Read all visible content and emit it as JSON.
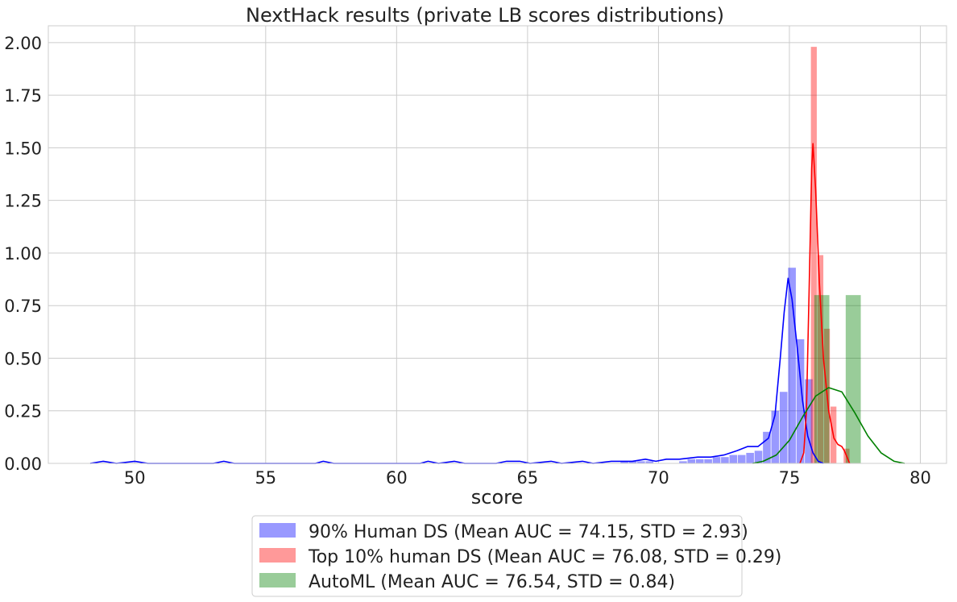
{
  "chart_data": {
    "type": "histogram",
    "title": "NextHack results (private LB scores distributions)",
    "xlabel": "score",
    "ylabel": "",
    "xlim": [
      46.7,
      81.0
    ],
    "ylim": [
      0,
      2.08
    ],
    "xticks": [
      50,
      55,
      60,
      65,
      70,
      75,
      80
    ],
    "yticks": [
      0,
      0.25,
      0.5,
      0.75,
      1.0,
      1.25,
      1.5,
      1.75,
      2.0
    ],
    "ytick_labels": [
      "0.00",
      "0.25",
      "0.50",
      "0.75",
      "1.00",
      "1.25",
      "1.50",
      "1.75",
      "2.00"
    ],
    "grid": true,
    "legend_position": "bottom-center",
    "series": [
      {
        "name": "90% Human DS (Mean AUC = 74.15, STD = 2.93)",
        "color": "#0000ff",
        "bin_width": 0.32,
        "bars": [
          [
            68.55,
            0.01
          ],
          [
            68.87,
            0.01
          ],
          [
            69.19,
            0.01
          ],
          [
            69.51,
            0.01
          ],
          [
            70.79,
            0.01
          ],
          [
            71.11,
            0.02
          ],
          [
            71.43,
            0.02
          ],
          [
            71.75,
            0.02
          ],
          [
            72.07,
            0.03
          ],
          [
            72.39,
            0.03
          ],
          [
            72.71,
            0.04
          ],
          [
            73.03,
            0.04
          ],
          [
            73.35,
            0.05
          ],
          [
            73.67,
            0.06
          ],
          [
            73.99,
            0.15
          ],
          [
            74.31,
            0.25
          ],
          [
            74.63,
            0.34
          ],
          [
            74.95,
            0.93
          ],
          [
            75.27,
            0.59
          ],
          [
            75.59,
            0.4
          ]
        ],
        "kde": [
          [
            48.3,
            0.0
          ],
          [
            48.8,
            0.01
          ],
          [
            49.3,
            0.0
          ],
          [
            50.0,
            0.01
          ],
          [
            50.5,
            0.0
          ],
          [
            53.0,
            0.0
          ],
          [
            53.4,
            0.01
          ],
          [
            53.8,
            0.0
          ],
          [
            56.9,
            0.0
          ],
          [
            57.2,
            0.01
          ],
          [
            57.6,
            0.0
          ],
          [
            60.9,
            0.0
          ],
          [
            61.2,
            0.01
          ],
          [
            61.6,
            0.0
          ],
          [
            62.2,
            0.01
          ],
          [
            62.6,
            0.0
          ],
          [
            63.8,
            0.0
          ],
          [
            64.2,
            0.01
          ],
          [
            64.7,
            0.01
          ],
          [
            65.1,
            0.0
          ],
          [
            65.9,
            0.01
          ],
          [
            66.3,
            0.0
          ],
          [
            67.1,
            0.01
          ],
          [
            67.5,
            0.0
          ],
          [
            68.2,
            0.01
          ],
          [
            68.6,
            0.01
          ],
          [
            69.0,
            0.01
          ],
          [
            69.5,
            0.02
          ],
          [
            69.9,
            0.01
          ],
          [
            70.3,
            0.02
          ],
          [
            70.8,
            0.02
          ],
          [
            71.5,
            0.03
          ],
          [
            72.0,
            0.03
          ],
          [
            72.5,
            0.04
          ],
          [
            73.0,
            0.06
          ],
          [
            73.4,
            0.08
          ],
          [
            73.8,
            0.08
          ],
          [
            74.2,
            0.12
          ],
          [
            74.45,
            0.23
          ],
          [
            74.65,
            0.5
          ],
          [
            74.8,
            0.72
          ],
          [
            74.95,
            0.88
          ],
          [
            75.1,
            0.78
          ],
          [
            75.3,
            0.55
          ],
          [
            75.5,
            0.3
          ],
          [
            75.7,
            0.13
          ],
          [
            75.9,
            0.05
          ],
          [
            76.1,
            0.01
          ],
          [
            76.3,
            0.0
          ]
        ]
      },
      {
        "name": "Top 10% human DS (Mean AUC = 76.08, STD = 0.29)",
        "color": "#ff0000",
        "bin_width": 0.25,
        "bars": [
          [
            75.82,
            1.98
          ],
          [
            76.07,
            0.99
          ],
          [
            76.32,
            0.64
          ],
          [
            76.57,
            0.27
          ],
          [
            76.82,
            0.0
          ],
          [
            77.07,
            0.07
          ]
        ],
        "kde": [
          [
            75.4,
            0.0
          ],
          [
            75.55,
            0.05
          ],
          [
            75.65,
            0.25
          ],
          [
            75.75,
            0.8
          ],
          [
            75.85,
            1.4
          ],
          [
            75.9,
            1.52
          ],
          [
            76.0,
            1.3
          ],
          [
            76.15,
            0.85
          ],
          [
            76.3,
            0.5
          ],
          [
            76.5,
            0.25
          ],
          [
            76.7,
            0.12
          ],
          [
            76.85,
            0.09
          ],
          [
            77.0,
            0.08
          ],
          [
            77.1,
            0.06
          ],
          [
            77.2,
            0.03
          ],
          [
            77.3,
            0.0
          ]
        ]
      },
      {
        "name": "AutoML (Mean AUC = 76.54, STD = 0.84)",
        "color": "#008000",
        "bin_width": 0.6,
        "bars": [
          [
            75.95,
            0.8
          ],
          [
            76.55,
            0.0
          ],
          [
            77.15,
            0.8
          ]
        ],
        "kde": [
          [
            73.6,
            0.0
          ],
          [
            74.0,
            0.01
          ],
          [
            74.5,
            0.04
          ],
          [
            75.0,
            0.11
          ],
          [
            75.5,
            0.22
          ],
          [
            76.0,
            0.32
          ],
          [
            76.5,
            0.36
          ],
          [
            77.0,
            0.34
          ],
          [
            77.5,
            0.24
          ],
          [
            78.0,
            0.13
          ],
          [
            78.5,
            0.05
          ],
          [
            79.0,
            0.01
          ],
          [
            79.4,
            0.0
          ]
        ]
      }
    ]
  }
}
